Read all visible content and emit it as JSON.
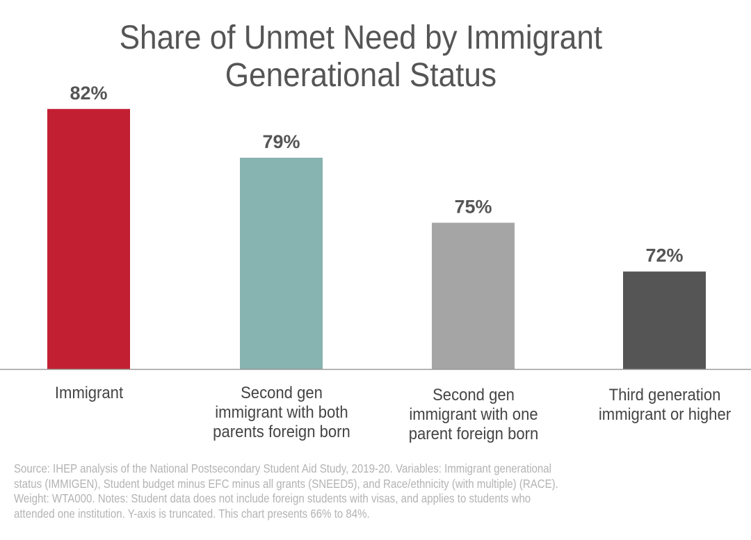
{
  "chart_data": {
    "type": "bar",
    "title_lines": [
      "Share of Unmet Need by Immigrant",
      "Generational Status"
    ],
    "categories": [
      [
        "Immigrant"
      ],
      [
        "Second gen",
        "immigrant with both",
        "parents foreign born"
      ],
      [
        "Second gen",
        "immigrant with one",
        "parent foreign born"
      ],
      [
        "Third generation",
        "immigrant or higher"
      ]
    ],
    "values": [
      82,
      79,
      75,
      72
    ],
    "data_labels": [
      "82%",
      "79%",
      "75%",
      "72%"
    ],
    "colors": [
      "#C21F32",
      "#87B3B0",
      "#A5A5A5",
      "#555555"
    ],
    "ylim": [
      66,
      84
    ],
    "xlabel": "",
    "ylabel": "",
    "grid": false,
    "legend": "none"
  },
  "footnote_lines": [
    "Source: IHEP analysis of the National Postsecondary Student Aid Study, 2019-20. Variables: Immigrant generational",
    "status (IMMIGEN), Student budget minus EFC minus all grants (SNEED5), and Race/ethnicity (with multiple) (RACE).",
    "Weight: WTA000. Notes: Student data does not include foreign students with visas, and applies to students who",
    "attended one institution. Y-axis is truncated. This chart presents 66% to 84%."
  ]
}
